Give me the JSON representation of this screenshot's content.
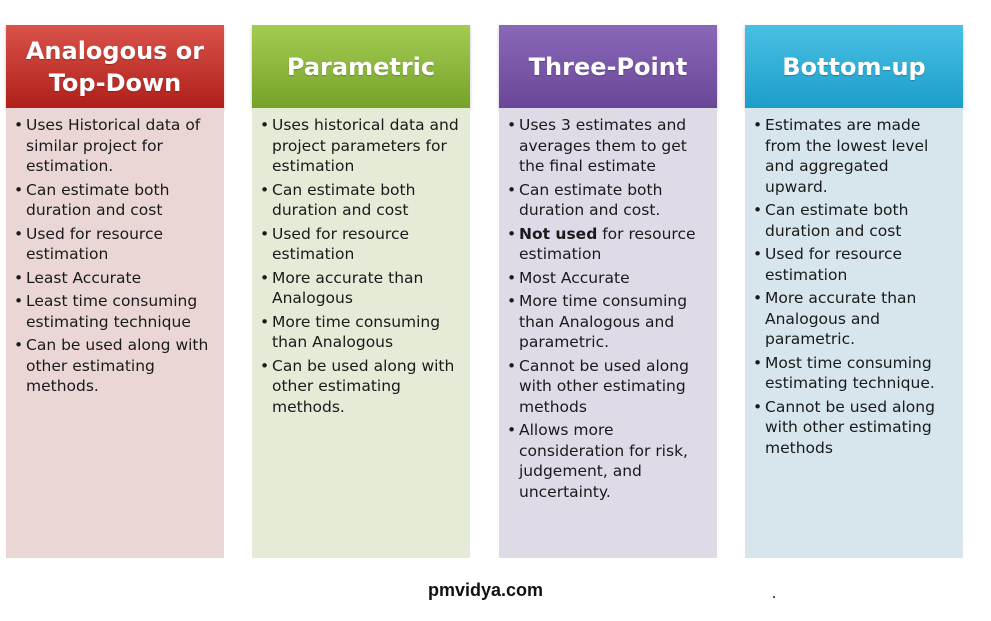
{
  "columns": [
    {
      "title_lines": [
        "Analogous or",
        "Top-Down"
      ],
      "header_gradient": [
        "#d9534a",
        "#b01f1a"
      ],
      "body_color": "#ebd6d6",
      "items": [
        [
          "Uses Historical data of similar project for estimation."
        ],
        [
          "Can estimate both duration and cost"
        ],
        [
          "Used for resource estimation"
        ],
        [
          "Least Accurate"
        ],
        [
          "Least time consuming estimating technique"
        ],
        [
          "Can be used along with other estimating methods."
        ]
      ]
    },
    {
      "title_lines": [
        "Parametric"
      ],
      "header_gradient": [
        "#a3cc52",
        "#77a22a"
      ],
      "body_color": "#e4ebd7",
      "items": [
        [
          "Uses historical data and project parameters for estimation"
        ],
        [
          "Can estimate both duration and cost"
        ],
        [
          "Used for resource estimation"
        ],
        [
          "More accurate than Analogous"
        ],
        [
          "More time consuming than Analogous"
        ],
        [
          "Can be used along with other estimating methods."
        ]
      ]
    },
    {
      "title_lines": [
        "Three-Point"
      ],
      "header_gradient": [
        "#8a68b8",
        "#6a4698"
      ],
      "body_color": "#dedae6",
      "items": [
        [
          "Uses 3 estimates and averages them to get the final estimate"
        ],
        [
          "Can estimate both duration and cost."
        ],
        [
          "Not used",
          " for resource estimation"
        ],
        [
          "Most Accurate"
        ],
        [
          "More time consuming than Analogous and parametric."
        ],
        [
          "Cannot be used along with other estimating methods"
        ],
        [
          "Allows more consideration for risk, judgement, and uncertainty."
        ]
      ]
    },
    {
      "title_lines": [
        "Bottom-up"
      ],
      "header_gradient": [
        "#49c0e4",
        "#1c9ec9"
      ],
      "body_color": "#d6e6ec",
      "items": [
        [
          "Estimates are made from the lowest level and aggregated upward."
        ],
        [
          "Can estimate both duration and cost"
        ],
        [
          "Used for resource estimation"
        ],
        [
          " More accurate than Analogous and parametric."
        ],
        [
          "Most time consuming estimating technique."
        ],
        [
          "Cannot be used along with other estimating methods"
        ]
      ]
    }
  ],
  "footer": "pmvidya.com"
}
